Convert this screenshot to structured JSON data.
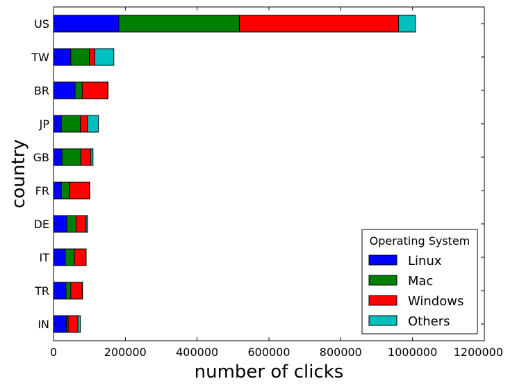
{
  "chart_data": {
    "type": "bar",
    "orientation": "horizontal",
    "stacked": true,
    "categories": [
      "US",
      "TW",
      "BR",
      "JP",
      "GB",
      "FR",
      "DE",
      "IT",
      "TR",
      "IN"
    ],
    "series": [
      {
        "name": "Linux",
        "color": "#0000ff",
        "values": [
          182000,
          48000,
          60000,
          22000,
          24000,
          22000,
          37000,
          33000,
          35000,
          36000
        ]
      },
      {
        "name": "Mac",
        "color": "#008000",
        "values": [
          336000,
          52000,
          20000,
          53000,
          52000,
          23000,
          26000,
          25000,
          13000,
          5000
        ]
      },
      {
        "name": "Windows",
        "color": "#ff0000",
        "values": [
          443000,
          15000,
          70000,
          20000,
          28000,
          55000,
          28000,
          33000,
          32000,
          27000
        ]
      },
      {
        "name": "Others",
        "color": "#00bfbf",
        "values": [
          47000,
          53000,
          2000,
          30000,
          6000,
          1000,
          4000,
          0,
          1000,
          7000
        ]
      }
    ],
    "xlabel": "number of clicks",
    "ylabel": "country",
    "xlim": [
      0,
      1200000
    ],
    "xticks": [
      0,
      200000,
      400000,
      600000,
      800000,
      1000000,
      1200000
    ],
    "xtick_labels": [
      "0",
      "200000",
      "400000",
      "600000",
      "800000",
      "1000000",
      "1200000"
    ],
    "legend": {
      "title": "Operating System",
      "placement": "lower-right"
    },
    "grid": false
  }
}
